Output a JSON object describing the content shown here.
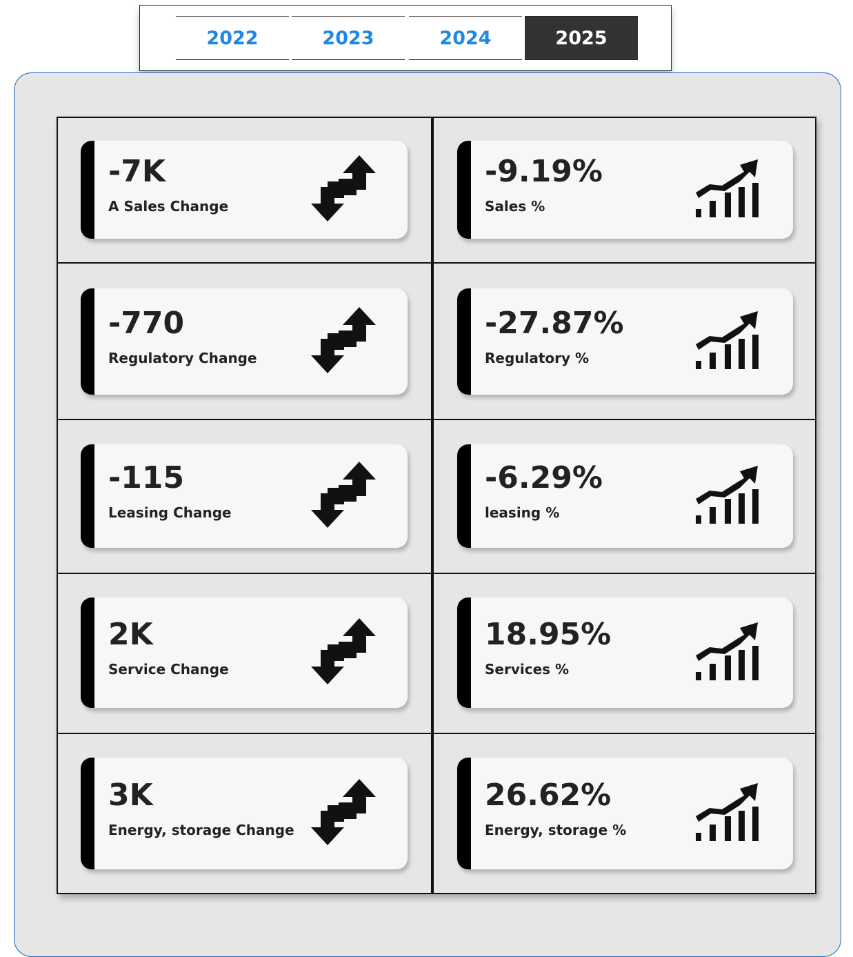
{
  "tabs": [
    "2022",
    "2023",
    "2024",
    "2025"
  ],
  "selected_tab": 3,
  "cards": {
    "left": [
      {
        "value": "-7K",
        "label": "A Sales Change"
      },
      {
        "value": "-770",
        "label": "Regulatory Change"
      },
      {
        "value": "-115",
        "label": "Leasing Change"
      },
      {
        "value": "2K",
        "label": "Service Change"
      },
      {
        "value": "3K",
        "label": "Energy, storage Change"
      }
    ],
    "right": [
      {
        "value": "-9.19%",
        "label": "Sales %"
      },
      {
        "value": "-27.87%",
        "label": "Regulatory %"
      },
      {
        "value": "-6.29%",
        "label": "leasing %"
      },
      {
        "value": "18.95%",
        "label": "Services %"
      },
      {
        "value": "26.62%",
        "label": "Energy, storage %"
      }
    ]
  }
}
